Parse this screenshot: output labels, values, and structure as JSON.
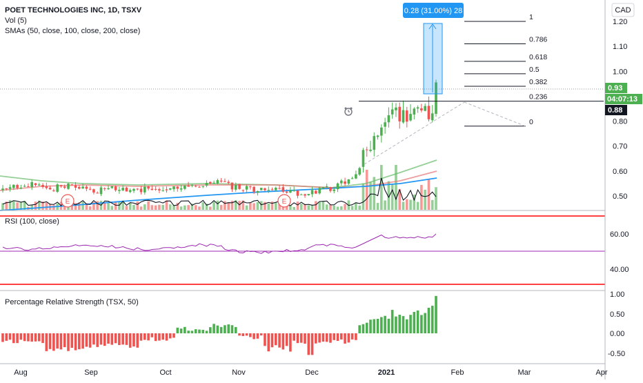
{
  "chart_title": "POET TECHNOLOGIES INC, 1D, TSXV",
  "legend": {
    "volume": "Vol (5)",
    "smas": "SMAs (50, close, 100, close, 200, close)",
    "rsi": "RSI (100, close)",
    "prs": "Percentage Relative Strength (TSX, 50)"
  },
  "currency_button": "CAD",
  "measure_label": "0.28 (31.00%) 28",
  "price_tags": {
    "last": "0.93",
    "countdown": "04:07:13",
    "crosshair": "0.88"
  },
  "time_axis": [
    "Aug",
    "Sep",
    "Oct",
    "Nov",
    "Dec",
    "2021",
    "Feb",
    "Mar",
    "Apr"
  ],
  "earnings_marker": "E",
  "colors": {
    "up": "#26a69a",
    "up_candle": "#4caf50",
    "down": "#ef5350",
    "sma50": "#66bb6a",
    "sma100": "#e57373",
    "sma200": "#2196f3",
    "rsi": "#9c27b0",
    "measure": "#2196f3"
  },
  "chart_data": [
    {
      "type": "candlestick",
      "title": "POET TECHNOLOGIES INC, 1D, TSXV",
      "ylim": [
        0.45,
        1.25
      ],
      "y_ticks": [
        "1.20",
        "1.10",
        "1.00",
        "0.90",
        "0.80",
        "0.70",
        "0.60",
        "0.50"
      ],
      "last_price": 0.93,
      "crosshair_price": 0.88,
      "fibonacci": {
        "levels": [
          "1",
          "0.786",
          "0.618",
          "0.5",
          "0.382",
          "0.236",
          "0"
        ],
        "prices": [
          1.2,
          1.11,
          1.04,
          0.99,
          0.94,
          0.88,
          0.78
        ]
      },
      "sma_series": [
        {
          "name": "SMA 50",
          "end_value": 0.64
        },
        {
          "name": "SMA 100",
          "end_value": 0.59
        },
        {
          "name": "SMA 200",
          "end_value": 0.57
        }
      ]
    },
    {
      "type": "line",
      "title": "RSI (100, close)",
      "ylim": [
        30,
        70
      ],
      "y_ticks": [
        "60.00",
        "40.00"
      ],
      "bands": [
        70,
        50,
        30
      ],
      "last_value": 60
    },
    {
      "type": "bar",
      "title": "Percentage Relative Strength (TSX, 50)",
      "ylim": [
        -0.6,
        1.0
      ],
      "y_ticks": [
        "1.00",
        "0.50",
        "0.00",
        "-0.50"
      ],
      "last_value": 0.95
    }
  ]
}
